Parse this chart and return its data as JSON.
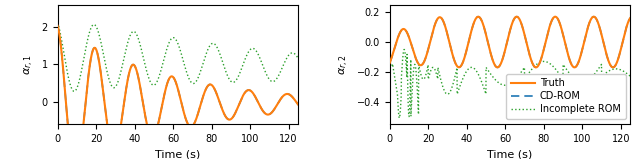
{
  "xlabel": "Time (s)",
  "ylabel1": "$\\alpha_{r,1}$",
  "ylabel2": "$\\alpha_{r,2}$",
  "xlim": [
    0,
    125
  ],
  "ylim1": [
    -0.6,
    2.6
  ],
  "ylim2": [
    -0.55,
    0.25
  ],
  "yticks1": [
    0,
    1,
    2
  ],
  "yticks2": [
    -0.4,
    -0.2,
    0.0,
    0.2
  ],
  "xticks": [
    0,
    20,
    40,
    60,
    80,
    100,
    120
  ],
  "color_truth": "#ff7f0e",
  "color_cdrom": "#1f77b4",
  "color_incomplete": "#2ca02c",
  "legend_labels": [
    "Truth",
    "CD-ROM",
    "Incomplete ROM"
  ],
  "figsize": [
    6.4,
    1.59
  ],
  "dpi": 100
}
